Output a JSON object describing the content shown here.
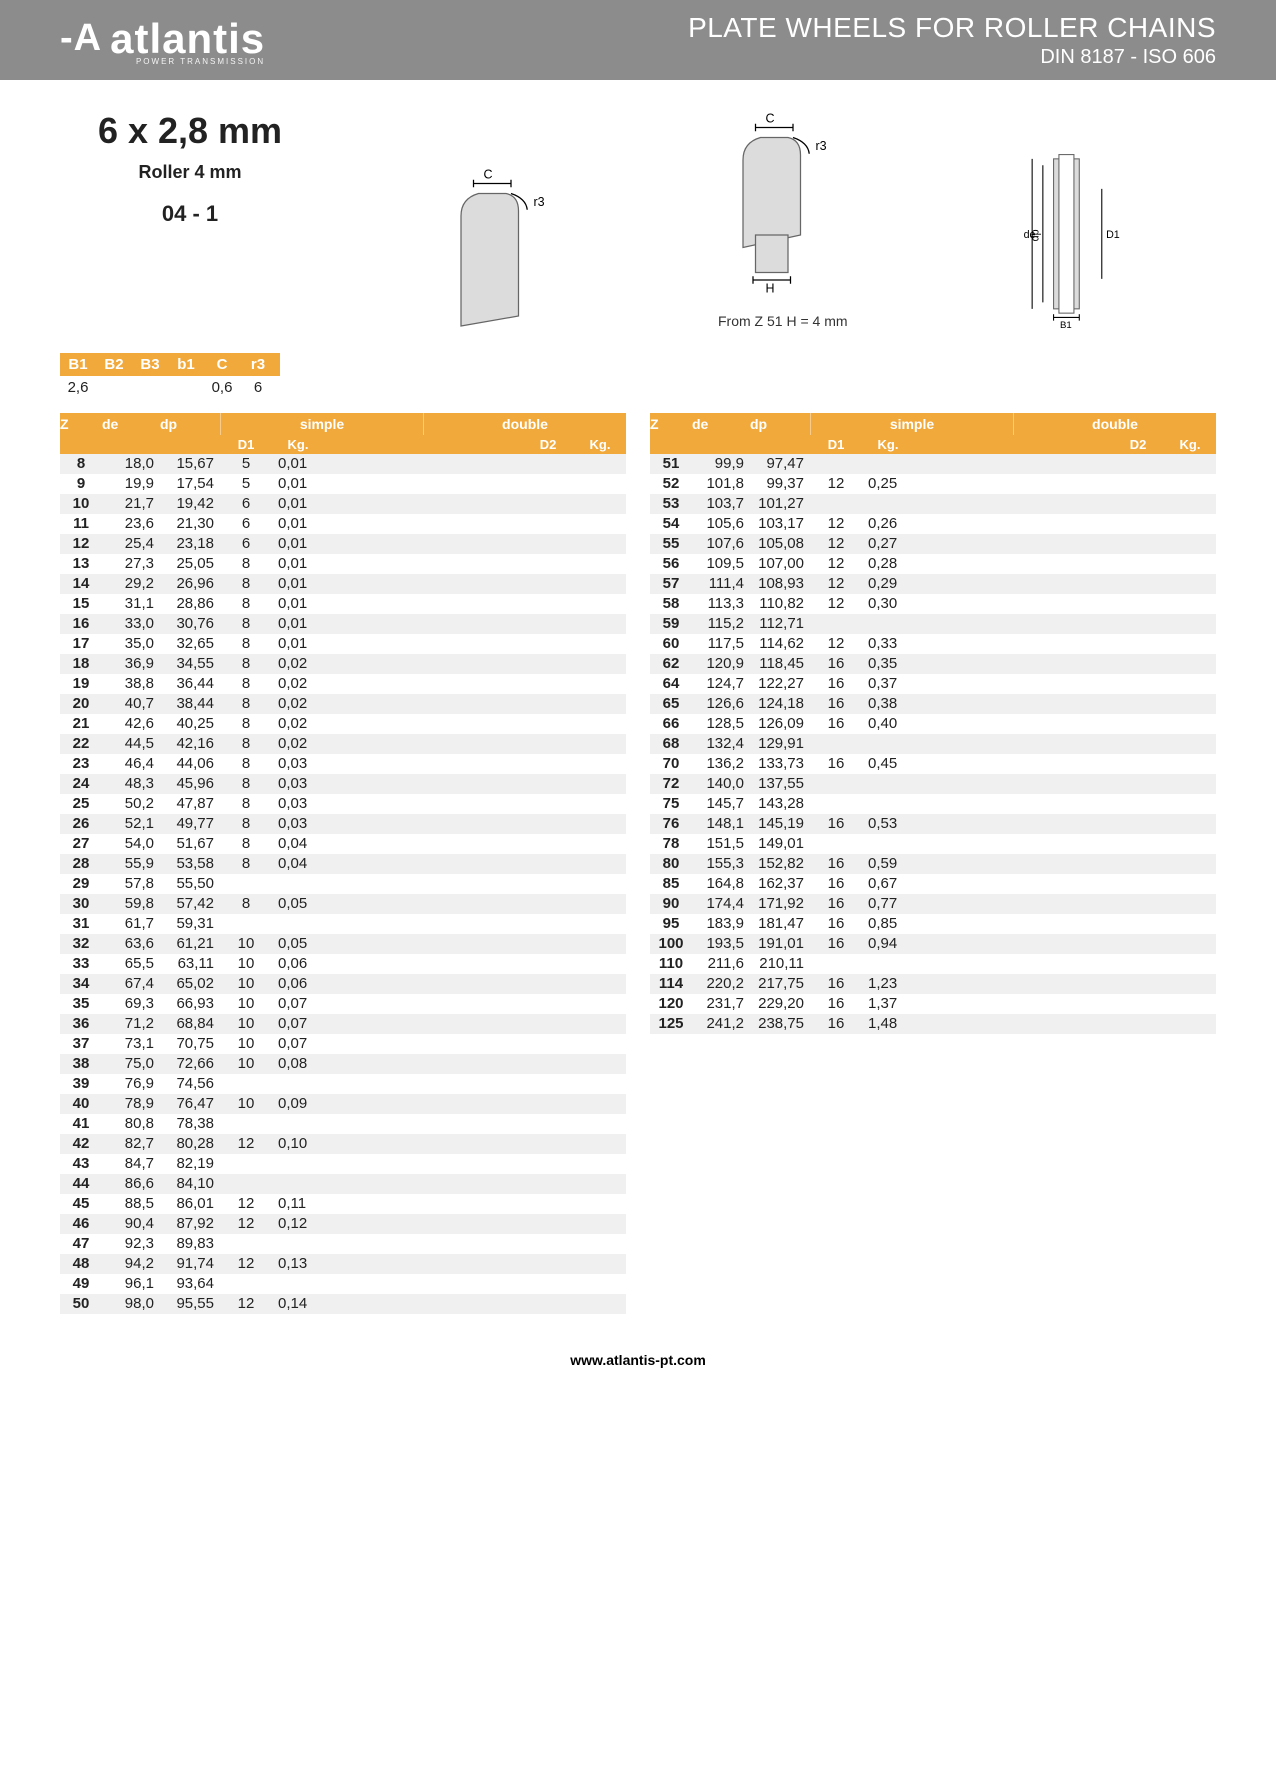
{
  "header": {
    "logo_text": "atlantis",
    "logo_sub": "POWER TRANSMISSION",
    "title": "PLATE WHEELS FOR ROLLER CHAINS",
    "subtitle": "DIN 8187 - ISO 606"
  },
  "product": {
    "size": "6 x 2,8 mm",
    "roller": "Roller 4 mm",
    "code": "04 - 1",
    "note": "From Z 51 H = 4 mm"
  },
  "spec": {
    "headers": [
      "B1",
      "B2",
      "B3",
      "b1",
      "C",
      "r3"
    ],
    "values": [
      "2,6",
      "",
      "",
      "",
      "0,6",
      "6"
    ]
  },
  "table_headers": {
    "z": "Z",
    "de": "de",
    "dp": "dp",
    "simple": "simple",
    "double": "double",
    "d1": "D1",
    "kg": "Kg.",
    "d2": "D2"
  },
  "left_rows": [
    {
      "z": "8",
      "de": "18,0",
      "dp": "15,67",
      "d1": "5",
      "kg": "0,01"
    },
    {
      "z": "9",
      "de": "19,9",
      "dp": "17,54",
      "d1": "5",
      "kg": "0,01"
    },
    {
      "z": "10",
      "de": "21,7",
      "dp": "19,42",
      "d1": "6",
      "kg": "0,01"
    },
    {
      "z": "11",
      "de": "23,6",
      "dp": "21,30",
      "d1": "6",
      "kg": "0,01"
    },
    {
      "z": "12",
      "de": "25,4",
      "dp": "23,18",
      "d1": "6",
      "kg": "0,01"
    },
    {
      "z": "13",
      "de": "27,3",
      "dp": "25,05",
      "d1": "8",
      "kg": "0,01"
    },
    {
      "z": "14",
      "de": "29,2",
      "dp": "26,96",
      "d1": "8",
      "kg": "0,01"
    },
    {
      "z": "15",
      "de": "31,1",
      "dp": "28,86",
      "d1": "8",
      "kg": "0,01"
    },
    {
      "z": "16",
      "de": "33,0",
      "dp": "30,76",
      "d1": "8",
      "kg": "0,01"
    },
    {
      "z": "17",
      "de": "35,0",
      "dp": "32,65",
      "d1": "8",
      "kg": "0,01"
    },
    {
      "z": "18",
      "de": "36,9",
      "dp": "34,55",
      "d1": "8",
      "kg": "0,02"
    },
    {
      "z": "19",
      "de": "38,8",
      "dp": "36,44",
      "d1": "8",
      "kg": "0,02"
    },
    {
      "z": "20",
      "de": "40,7",
      "dp": "38,44",
      "d1": "8",
      "kg": "0,02"
    },
    {
      "z": "21",
      "de": "42,6",
      "dp": "40,25",
      "d1": "8",
      "kg": "0,02"
    },
    {
      "z": "22",
      "de": "44,5",
      "dp": "42,16",
      "d1": "8",
      "kg": "0,02"
    },
    {
      "z": "23",
      "de": "46,4",
      "dp": "44,06",
      "d1": "8",
      "kg": "0,03"
    },
    {
      "z": "24",
      "de": "48,3",
      "dp": "45,96",
      "d1": "8",
      "kg": "0,03"
    },
    {
      "z": "25",
      "de": "50,2",
      "dp": "47,87",
      "d1": "8",
      "kg": "0,03"
    },
    {
      "z": "26",
      "de": "52,1",
      "dp": "49,77",
      "d1": "8",
      "kg": "0,03"
    },
    {
      "z": "27",
      "de": "54,0",
      "dp": "51,67",
      "d1": "8",
      "kg": "0,04"
    },
    {
      "z": "28",
      "de": "55,9",
      "dp": "53,58",
      "d1": "8",
      "kg": "0,04"
    },
    {
      "z": "29",
      "de": "57,8",
      "dp": "55,50",
      "d1": "",
      "kg": ""
    },
    {
      "z": "30",
      "de": "59,8",
      "dp": "57,42",
      "d1": "8",
      "kg": "0,05"
    },
    {
      "z": "31",
      "de": "61,7",
      "dp": "59,31",
      "d1": "",
      "kg": ""
    },
    {
      "z": "32",
      "de": "63,6",
      "dp": "61,21",
      "d1": "10",
      "kg": "0,05"
    },
    {
      "z": "33",
      "de": "65,5",
      "dp": "63,11",
      "d1": "10",
      "kg": "0,06"
    },
    {
      "z": "34",
      "de": "67,4",
      "dp": "65,02",
      "d1": "10",
      "kg": "0,06"
    },
    {
      "z": "35",
      "de": "69,3",
      "dp": "66,93",
      "d1": "10",
      "kg": "0,07"
    },
    {
      "z": "36",
      "de": "71,2",
      "dp": "68,84",
      "d1": "10",
      "kg": "0,07"
    },
    {
      "z": "37",
      "de": "73,1",
      "dp": "70,75",
      "d1": "10",
      "kg": "0,07"
    },
    {
      "z": "38",
      "de": "75,0",
      "dp": "72,66",
      "d1": "10",
      "kg": "0,08"
    },
    {
      "z": "39",
      "de": "76,9",
      "dp": "74,56",
      "d1": "",
      "kg": ""
    },
    {
      "z": "40",
      "de": "78,9",
      "dp": "76,47",
      "d1": "10",
      "kg": "0,09"
    },
    {
      "z": "41",
      "de": "80,8",
      "dp": "78,38",
      "d1": "",
      "kg": ""
    },
    {
      "z": "42",
      "de": "82,7",
      "dp": "80,28",
      "d1": "12",
      "kg": "0,10"
    },
    {
      "z": "43",
      "de": "84,7",
      "dp": "82,19",
      "d1": "",
      "kg": ""
    },
    {
      "z": "44",
      "de": "86,6",
      "dp": "84,10",
      "d1": "",
      "kg": ""
    },
    {
      "z": "45",
      "de": "88,5",
      "dp": "86,01",
      "d1": "12",
      "kg": "0,11"
    },
    {
      "z": "46",
      "de": "90,4",
      "dp": "87,92",
      "d1": "12",
      "kg": "0,12"
    },
    {
      "z": "47",
      "de": "92,3",
      "dp": "89,83",
      "d1": "",
      "kg": ""
    },
    {
      "z": "48",
      "de": "94,2",
      "dp": "91,74",
      "d1": "12",
      "kg": "0,13"
    },
    {
      "z": "49",
      "de": "96,1",
      "dp": "93,64",
      "d1": "",
      "kg": ""
    },
    {
      "z": "50",
      "de": "98,0",
      "dp": "95,55",
      "d1": "12",
      "kg": "0,14"
    }
  ],
  "right_rows": [
    {
      "z": "51",
      "de": "99,9",
      "dp": "97,47",
      "d1": "",
      "kg": ""
    },
    {
      "z": "52",
      "de": "101,8",
      "dp": "99,37",
      "d1": "12",
      "kg": "0,25"
    },
    {
      "z": "53",
      "de": "103,7",
      "dp": "101,27",
      "d1": "",
      "kg": ""
    },
    {
      "z": "54",
      "de": "105,6",
      "dp": "103,17",
      "d1": "12",
      "kg": "0,26"
    },
    {
      "z": "55",
      "de": "107,6",
      "dp": "105,08",
      "d1": "12",
      "kg": "0,27"
    },
    {
      "z": "56",
      "de": "109,5",
      "dp": "107,00",
      "d1": "12",
      "kg": "0,28"
    },
    {
      "z": "57",
      "de": "111,4",
      "dp": "108,93",
      "d1": "12",
      "kg": "0,29"
    },
    {
      "z": "58",
      "de": "113,3",
      "dp": "110,82",
      "d1": "12",
      "kg": "0,30"
    },
    {
      "z": "59",
      "de": "115,2",
      "dp": "112,71",
      "d1": "",
      "kg": ""
    },
    {
      "z": "60",
      "de": "117,5",
      "dp": "114,62",
      "d1": "12",
      "kg": "0,33"
    },
    {
      "z": "62",
      "de": "120,9",
      "dp": "118,45",
      "d1": "16",
      "kg": "0,35"
    },
    {
      "z": "64",
      "de": "124,7",
      "dp": "122,27",
      "d1": "16",
      "kg": "0,37"
    },
    {
      "z": "65",
      "de": "126,6",
      "dp": "124,18",
      "d1": "16",
      "kg": "0,38"
    },
    {
      "z": "66",
      "de": "128,5",
      "dp": "126,09",
      "d1": "16",
      "kg": "0,40"
    },
    {
      "z": "68",
      "de": "132,4",
      "dp": "129,91",
      "d1": "",
      "kg": ""
    },
    {
      "z": "70",
      "de": "136,2",
      "dp": "133,73",
      "d1": "16",
      "kg": "0,45"
    },
    {
      "z": "72",
      "de": "140,0",
      "dp": "137,55",
      "d1": "",
      "kg": ""
    },
    {
      "z": "75",
      "de": "145,7",
      "dp": "143,28",
      "d1": "",
      "kg": ""
    },
    {
      "z": "76",
      "de": "148,1",
      "dp": "145,19",
      "d1": "16",
      "kg": "0,53"
    },
    {
      "z": "78",
      "de": "151,5",
      "dp": "149,01",
      "d1": "",
      "kg": ""
    },
    {
      "z": "80",
      "de": "155,3",
      "dp": "152,82",
      "d1": "16",
      "kg": "0,59"
    },
    {
      "z": "85",
      "de": "164,8",
      "dp": "162,37",
      "d1": "16",
      "kg": "0,67"
    },
    {
      "z": "90",
      "de": "174,4",
      "dp": "171,92",
      "d1": "16",
      "kg": "0,77"
    },
    {
      "z": "95",
      "de": "183,9",
      "dp": "181,47",
      "d1": "16",
      "kg": "0,85"
    },
    {
      "z": "100",
      "de": "193,5",
      "dp": "191,01",
      "d1": "16",
      "kg": "0,94"
    },
    {
      "z": "110",
      "de": "211,6",
      "dp": "210,11",
      "d1": "",
      "kg": ""
    },
    {
      "z": "114",
      "de": "220,2",
      "dp": "217,75",
      "d1": "16",
      "kg": "1,23"
    },
    {
      "z": "120",
      "de": "231,7",
      "dp": "229,20",
      "d1": "16",
      "kg": "1,37"
    },
    {
      "z": "125",
      "de": "241,2",
      "dp": "238,75",
      "d1": "16",
      "kg": "1,48"
    }
  ],
  "footer": {
    "url": "www.atlantis-pt.com"
  }
}
